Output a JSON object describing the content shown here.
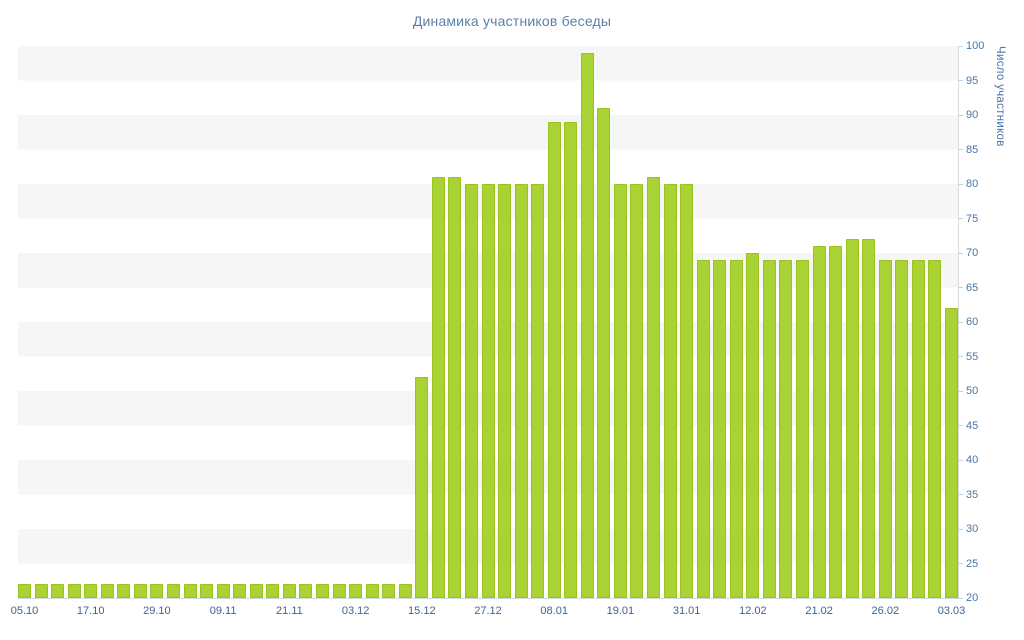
{
  "chart_data": {
    "type": "bar",
    "title": "Динамика участников беседы",
    "ylabel": "Число участников",
    "xlabel": "",
    "ylim": [
      20,
      100
    ],
    "grid": "horizontal-bands-5",
    "legend": "none",
    "y_ticks": [
      100,
      95,
      90,
      85,
      80,
      75,
      70,
      65,
      60,
      55,
      50,
      45,
      40,
      35,
      30,
      25,
      20
    ],
    "x_tick_labels": [
      "05.10",
      "17.10",
      "29.10",
      "09.11",
      "21.11",
      "03.12",
      "15.12",
      "27.12",
      "08.01",
      "19.01",
      "31.01",
      "12.02",
      "21.02",
      "26.02",
      "03.03"
    ],
    "x_tick_indices": [
      0,
      4,
      8,
      12,
      16,
      20,
      24,
      28,
      32,
      36,
      40,
      44,
      48,
      52,
      56
    ],
    "values": [
      22,
      22,
      22,
      22,
      22,
      22,
      22,
      22,
      22,
      22,
      22,
      22,
      22,
      22,
      22,
      22,
      22,
      22,
      22,
      22,
      22,
      22,
      22,
      22,
      52,
      81,
      81,
      80,
      80,
      80,
      80,
      80,
      89,
      89,
      99,
      91,
      80,
      80,
      81,
      80,
      80,
      69,
      69,
      69,
      70,
      69,
      69,
      69,
      71,
      71,
      72,
      72,
      69,
      69,
      69,
      69,
      62
    ],
    "colors": {
      "bar_fill": "#a9d334",
      "bar_border": "#9bc31f",
      "band": "#f6f6f6",
      "background": "#ffffff",
      "title_text": "#5b7fa8",
      "y_label_text": "#4a76a8",
      "x_label_text": "#3f648e",
      "axis_line": "#d4dbe2",
      "tick": "#c7d0d9"
    }
  }
}
